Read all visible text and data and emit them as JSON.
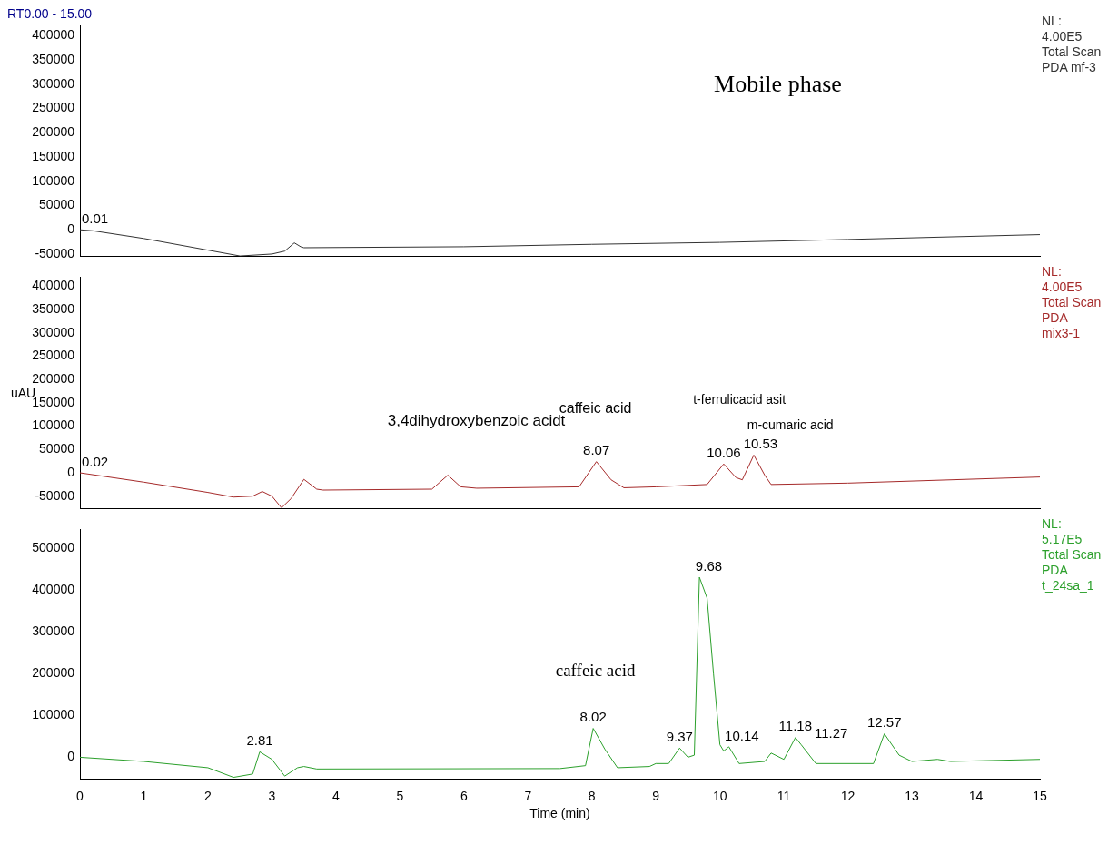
{
  "chart_data": [
    {
      "type": "line",
      "title": "RT0.00 - 15.00",
      "subtitle": "NL:\n4.00E5\nTotal Scan\nPDA mf-3",
      "xlim": [
        0,
        15
      ],
      "ylim": [
        -55000,
        420000
      ],
      "yticks": [
        -50000,
        0,
        50000,
        100000,
        150000,
        200000,
        250000,
        300000,
        350000,
        400000
      ],
      "tick_labels": "y",
      "grid": false,
      "legend": false,
      "marker": "none",
      "series": [
        {
          "color": "#333333",
          "x": [
            0,
            0.2,
            1,
            2,
            2.5,
            3.0,
            3.2,
            3.35,
            3.45,
            3.5,
            6,
            8,
            10,
            12,
            15
          ],
          "values": [
            0,
            -2000,
            -18000,
            -42000,
            -54000,
            -50000,
            -44000,
            -27000,
            -35000,
            -37000,
            -35000,
            -30000,
            -26000,
            -20000,
            -10000
          ]
        }
      ],
      "annotations": [
        {
          "text": "0.01",
          "x": 0,
          "y": 0
        },
        "Mobile phase"
      ]
    },
    {
      "type": "line",
      "subtitle": "NL:\n4.00E5\nTotal Scan\nPDA\nmix3-1",
      "ylabel": "uAU",
      "xlim": [
        0,
        15
      ],
      "ylim": [
        -77000,
        420000
      ],
      "yticks": [
        -50000,
        0,
        50000,
        100000,
        150000,
        200000,
        250000,
        300000,
        350000,
        400000
      ],
      "tick_labels": "y",
      "grid": false,
      "legend": false,
      "marker": "none",
      "series": [
        {
          "color": "#a52a2a",
          "x": [
            0,
            1,
            2,
            2.4,
            2.7,
            2.85,
            3.0,
            3.15,
            3.3,
            3.5,
            3.7,
            3.8,
            5.5,
            5.75,
            5.95,
            6.2,
            7.8,
            8.07,
            8.3,
            8.5,
            9,
            9.8,
            10.06,
            10.25,
            10.35,
            10.53,
            10.7,
            10.8,
            12,
            15
          ],
          "values": [
            0,
            -20000,
            -42000,
            -52000,
            -50000,
            -40000,
            -50000,
            -75000,
            -55000,
            -14000,
            -35000,
            -37000,
            -35000,
            -5000,
            -30000,
            -33000,
            -30000,
            24000,
            -15000,
            -32000,
            -30000,
            -25000,
            19000,
            -10000,
            -15000,
            38000,
            -5000,
            -25000,
            -22000,
            -9000
          ]
        }
      ],
      "annotations": [
        {
          "text": "0.02",
          "x": 0,
          "y": 0
        },
        {
          "text": "8.07",
          "x": 8.07,
          "y": 24000
        },
        {
          "text": "10.06",
          "x": 10.06,
          "y": 19000
        },
        {
          "text": "10.53",
          "x": 10.53,
          "y": 38000
        },
        "3,4dihydroxybenzoic acidt",
        "caffeic acid",
        "t-ferrulicacid asit",
        "m-cumaric acid"
      ]
    },
    {
      "type": "line",
      "subtitle": "NL:\n5.17E5\nTotal Scan\nPDA\nt_24sa_1",
      "xlabel": "Time (min)",
      "xlim": [
        0,
        15
      ],
      "ylim": [
        -52000,
        545000
      ],
      "xticks": [
        0,
        1,
        2,
        3,
        4,
        5,
        6,
        7,
        8,
        9,
        10,
        11,
        12,
        13,
        14,
        15
      ],
      "yticks": [
        0,
        100000,
        200000,
        300000,
        400000,
        500000
      ],
      "grid": false,
      "legend": false,
      "marker": "none",
      "series": [
        {
          "color": "#2ca02c",
          "x": [
            0,
            1,
            2,
            2.4,
            2.7,
            2.81,
            3.0,
            3.2,
            3.4,
            3.5,
            3.7,
            7.5,
            7.9,
            8.02,
            8.2,
            8.4,
            8.9,
            9.0,
            9.2,
            9.37,
            9.5,
            9.6,
            9.68,
            9.8,
            9.9,
            10.0,
            10.06,
            10.14,
            10.3,
            10.7,
            10.8,
            11.0,
            11.18,
            11.27,
            11.5,
            12.4,
            12.57,
            12.8,
            13.0,
            13.4,
            13.6,
            15
          ],
          "values": [
            0,
            -10000,
            -25000,
            -48000,
            -40000,
            13000,
            -5000,
            -45000,
            -25000,
            -22000,
            -28000,
            -27000,
            -20000,
            69000,
            20000,
            -25000,
            -22000,
            -15000,
            -15000,
            22000,
            0,
            5000,
            430000,
            380000,
            200000,
            30000,
            15000,
            25000,
            -15000,
            -10000,
            10000,
            -5000,
            47000,
            30000,
            -15000,
            -15000,
            56000,
            5000,
            -10000,
            -5000,
            -10000,
            -5000
          ]
        }
      ],
      "annotations": [
        {
          "text": "2.81",
          "x": 2.81,
          "y": 13000
        },
        {
          "text": "8.02",
          "x": 8.02,
          "y": 69000
        },
        {
          "text": "9.37",
          "x": 9.37,
          "y": 22000
        },
        {
          "text": "9.68",
          "x": 9.68,
          "y": 430000
        },
        {
          "text": "10.14",
          "x": 10.14,
          "y": 25000
        },
        {
          "text": "11.18",
          "x": 11.18,
          "y": 47000
        },
        {
          "text": "11.27",
          "x": 11.27,
          "y": 30000
        },
        {
          "text": "12.57",
          "x": 12.57,
          "y": 56000
        },
        "caffeic acid"
      ]
    }
  ]
}
